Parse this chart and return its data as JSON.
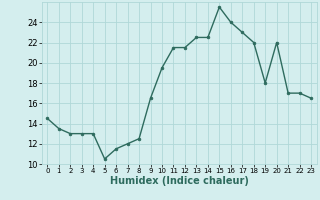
{
  "x": [
    0,
    1,
    2,
    3,
    4,
    5,
    6,
    7,
    8,
    9,
    10,
    11,
    12,
    13,
    14,
    15,
    16,
    17,
    18,
    19,
    20,
    21,
    22,
    23
  ],
  "y": [
    14.5,
    13.5,
    13.0,
    13.0,
    13.0,
    10.5,
    11.5,
    12.0,
    12.5,
    16.5,
    19.5,
    21.5,
    21.5,
    22.5,
    22.5,
    25.5,
    24.0,
    23.0,
    22.0,
    18.0,
    22.0,
    17.0,
    17.0,
    16.5
  ],
  "line_color": "#2e6b5e",
  "marker": "o",
  "markersize": 2.0,
  "linewidth": 1.0,
  "xlabel": "Humidex (Indice chaleur)",
  "xlabel_fontsize": 7,
  "ylim": [
    10,
    26
  ],
  "xlim": [
    -0.5,
    23.5
  ],
  "yticks": [
    10,
    12,
    14,
    16,
    18,
    20,
    22,
    24
  ],
  "xticks": [
    0,
    1,
    2,
    3,
    4,
    5,
    6,
    7,
    8,
    9,
    10,
    11,
    12,
    13,
    14,
    15,
    16,
    17,
    18,
    19,
    20,
    21,
    22,
    23
  ],
  "grid_color": "#b0d8d8",
  "bg_color": "#d4eeee",
  "tick_fontsize": 6,
  "xtick_fontsize": 5
}
